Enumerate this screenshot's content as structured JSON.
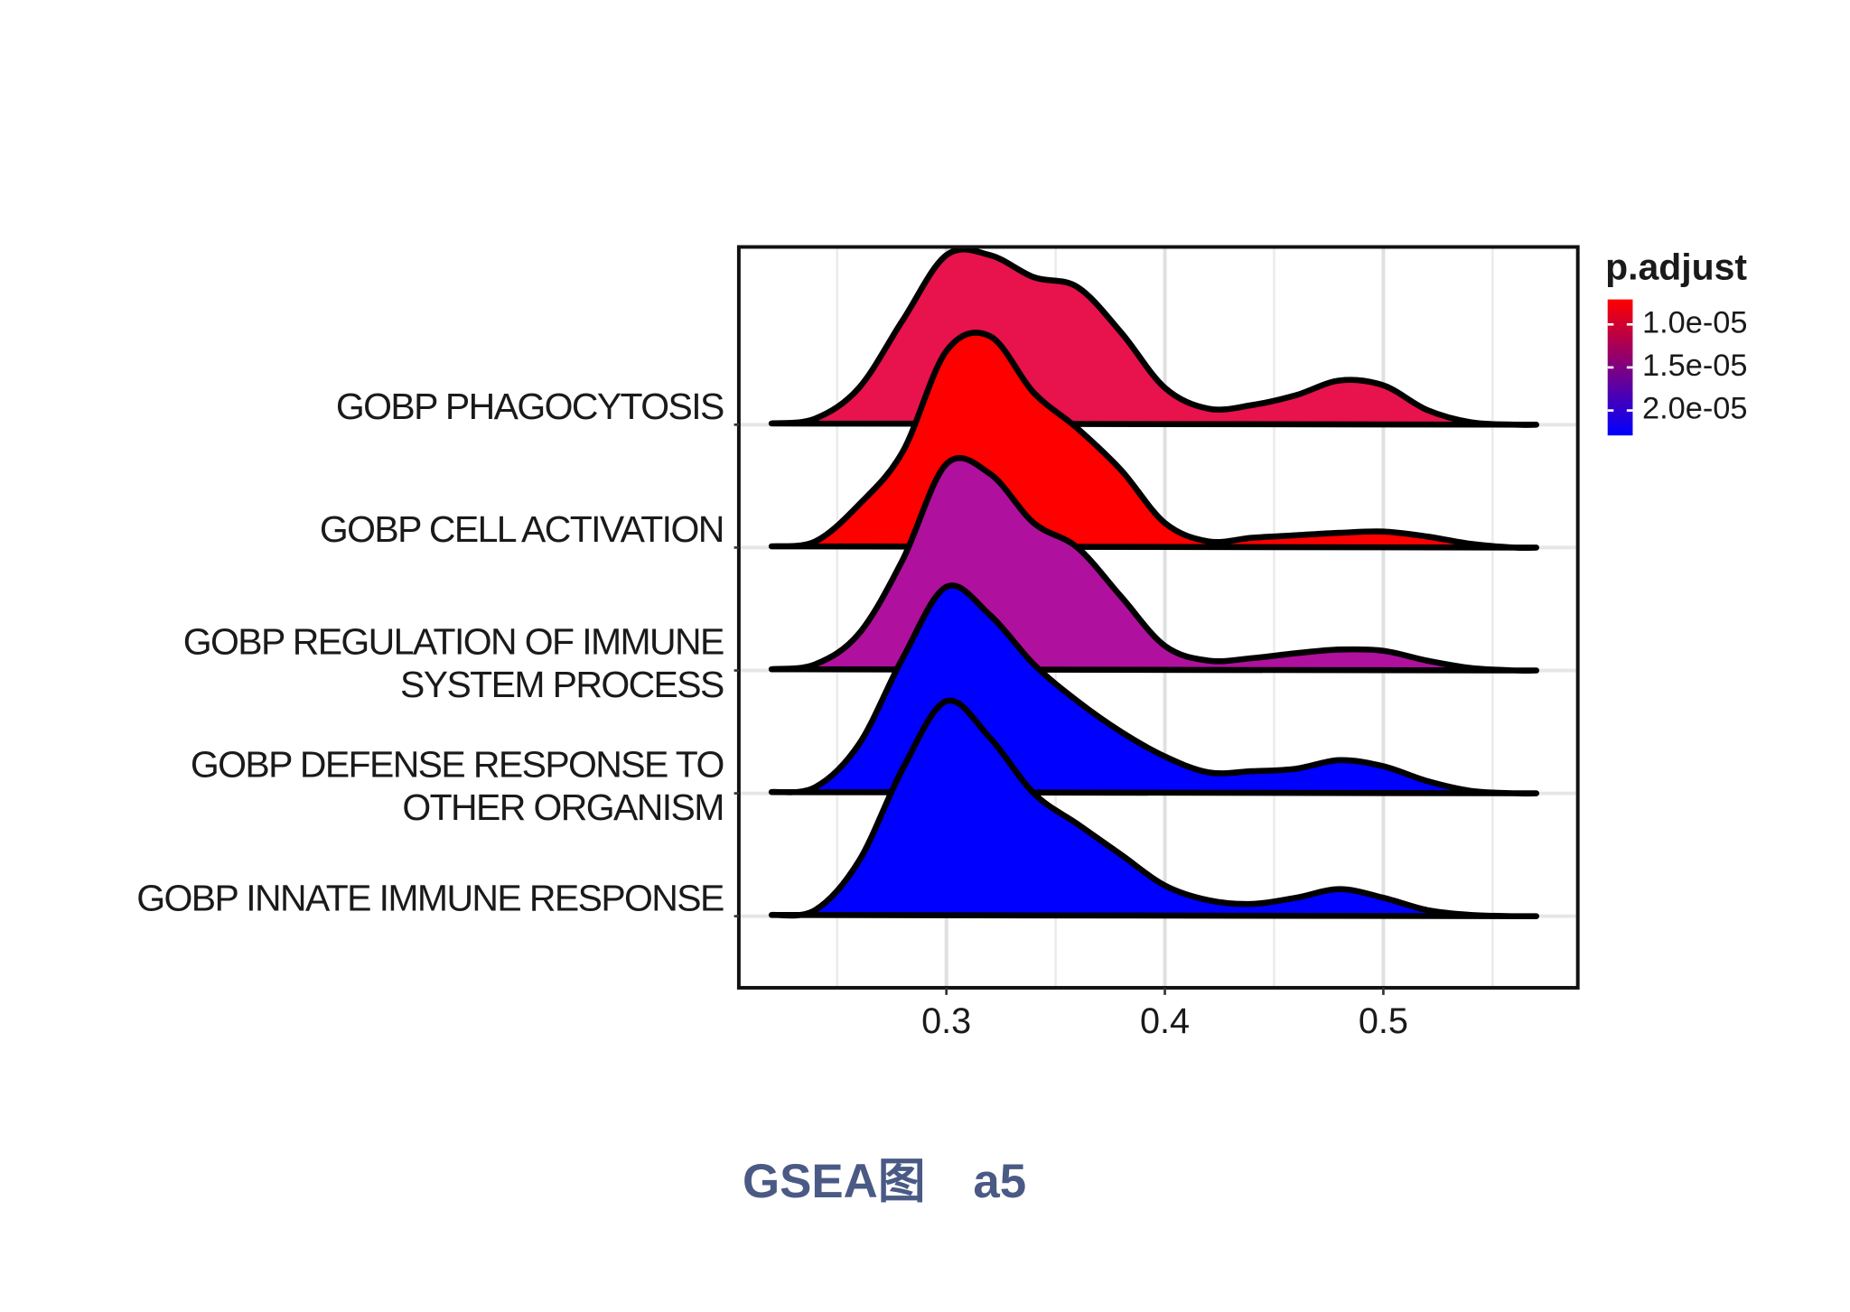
{
  "chart_data": {
    "type": "ridgeline",
    "categories": [
      "GOBP PHAGOCYTOSIS",
      "GOBP CELL ACTIVATION",
      "GOBP REGULATION OF IMMUNE\nSYSTEM PROCESS",
      "GOBP DEFENSE RESPONSE TO\nOTHER ORGANISM",
      "GOBP INNATE IMMUNE RESPONSE"
    ],
    "x": [
      0.22,
      0.24,
      0.26,
      0.28,
      0.3,
      0.32,
      0.34,
      0.36,
      0.38,
      0.4,
      0.42,
      0.44,
      0.46,
      0.48,
      0.5,
      0.52,
      0.54,
      0.56,
      0.57
    ],
    "series": [
      {
        "color": "#e8124c",
        "values": [
          0.01,
          0.05,
          0.3,
          0.85,
          1.38,
          1.38,
          1.2,
          1.12,
          0.75,
          0.3,
          0.13,
          0.16,
          0.24,
          0.36,
          0.32,
          0.12,
          0.02,
          0.0,
          0.0
        ]
      },
      {
        "color": "#ff0000",
        "values": [
          0.01,
          0.05,
          0.35,
          0.78,
          1.6,
          1.72,
          1.26,
          0.97,
          0.63,
          0.2,
          0.05,
          0.08,
          0.1,
          0.12,
          0.13,
          0.09,
          0.03,
          0.0,
          0.0
        ]
      },
      {
        "color": "#b0109e",
        "values": [
          0.01,
          0.05,
          0.3,
          0.9,
          1.68,
          1.6,
          1.2,
          1.0,
          0.6,
          0.2,
          0.08,
          0.1,
          0.14,
          0.17,
          0.16,
          0.08,
          0.02,
          0.0,
          0.0
        ]
      },
      {
        "color": "#0000ff",
        "values": [
          0.01,
          0.05,
          0.4,
          1.1,
          1.68,
          1.45,
          1.05,
          0.75,
          0.5,
          0.3,
          0.17,
          0.18,
          0.2,
          0.27,
          0.22,
          0.1,
          0.02,
          0.0,
          0.0
        ]
      },
      {
        "color": "#0000ff",
        "values": [
          0.01,
          0.05,
          0.45,
          1.2,
          1.75,
          1.45,
          1.0,
          0.75,
          0.5,
          0.25,
          0.13,
          0.1,
          0.15,
          0.22,
          0.15,
          0.05,
          0.01,
          0.0,
          0.0
        ]
      }
    ],
    "xlim": [
      0.205,
      0.589
    ],
    "xticks": [
      0.3,
      0.4,
      0.5
    ],
    "xminor": [
      0.25,
      0.35,
      0.45,
      0.55
    ],
    "grid": true,
    "color_scale": {
      "title": "p.adjust",
      "lim": [
        7.1e-06,
        2.29e-05
      ],
      "colors": [
        "#ff0000",
        "#0000ff"
      ],
      "ticks": [
        {
          "value": 1e-05,
          "label": "1.0e-05"
        },
        {
          "value": 1.5e-05,
          "label": "1.5e-05"
        },
        {
          "value": 2e-05,
          "label": "2.0e-05"
        }
      ]
    }
  },
  "caption": "GSEA图　a5"
}
